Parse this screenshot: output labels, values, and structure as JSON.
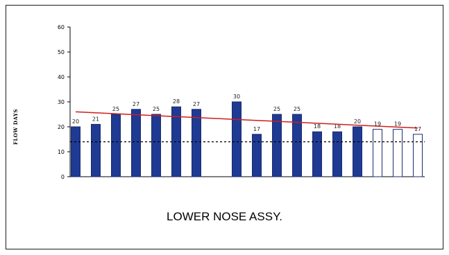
{
  "chart_data": {
    "type": "bar",
    "title": "LOWER NOSE ASSY.",
    "ylabel": "FLOW DAYS",
    "xlabel": "",
    "ylim": [
      0,
      60
    ],
    "yticks": [
      0,
      10,
      20,
      30,
      40,
      50,
      60
    ],
    "grid": false,
    "series": [
      {
        "type": "bar",
        "values": [
          20,
          21,
          25,
          27,
          25,
          28,
          27,
          30,
          17,
          25,
          25,
          18,
          18,
          20,
          19,
          19,
          17
        ],
        "data_labels": [
          "20",
          "21",
          "25",
          "27",
          "25",
          "28",
          "27",
          "30",
          "17",
          "25",
          "25",
          "18",
          "18",
          "20",
          "19",
          "19",
          "17"
        ],
        "colors": [
          "#1f3a93",
          "#1f3a93",
          "#1f3a93",
          "#1f3a93",
          "#1f3a93",
          "#1f3a93",
          "#1f3a93",
          "#1f3a93",
          "#1f3a93",
          "#1f3a93",
          "#1f3a93",
          "#1f3a93",
          "#1f3a93",
          "#1f3a93",
          "#ffffff",
          "#ffffff",
          "#ffffff"
        ]
      },
      {
        "type": "line",
        "style": "trend",
        "color": "#d01c1c",
        "values": [
          26,
          19.5
        ]
      },
      {
        "type": "line",
        "style": "dashed",
        "color": "#000000",
        "value": 14
      }
    ]
  }
}
